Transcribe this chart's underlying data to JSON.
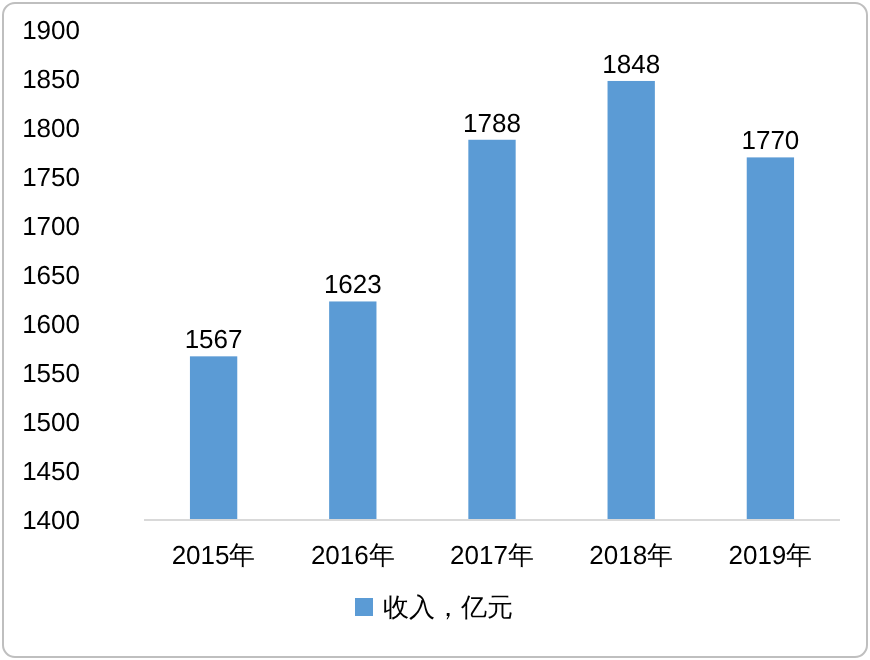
{
  "chart_data": {
    "type": "bar",
    "categories": [
      "2015年",
      "2016年",
      "2017年",
      "2018年",
      "2019年"
    ],
    "series": [
      {
        "name": "收入，亿元",
        "color": "#5b9bd5",
        "values": [
          1567,
          1623,
          1788,
          1848,
          1770
        ]
      }
    ],
    "ylim": [
      1400,
      1900
    ],
    "yticks": [
      1400,
      1450,
      1500,
      1550,
      1600,
      1650,
      1700,
      1750,
      1800,
      1850,
      1900
    ],
    "data_labels": true,
    "legend": "bottom",
    "grid": false
  }
}
